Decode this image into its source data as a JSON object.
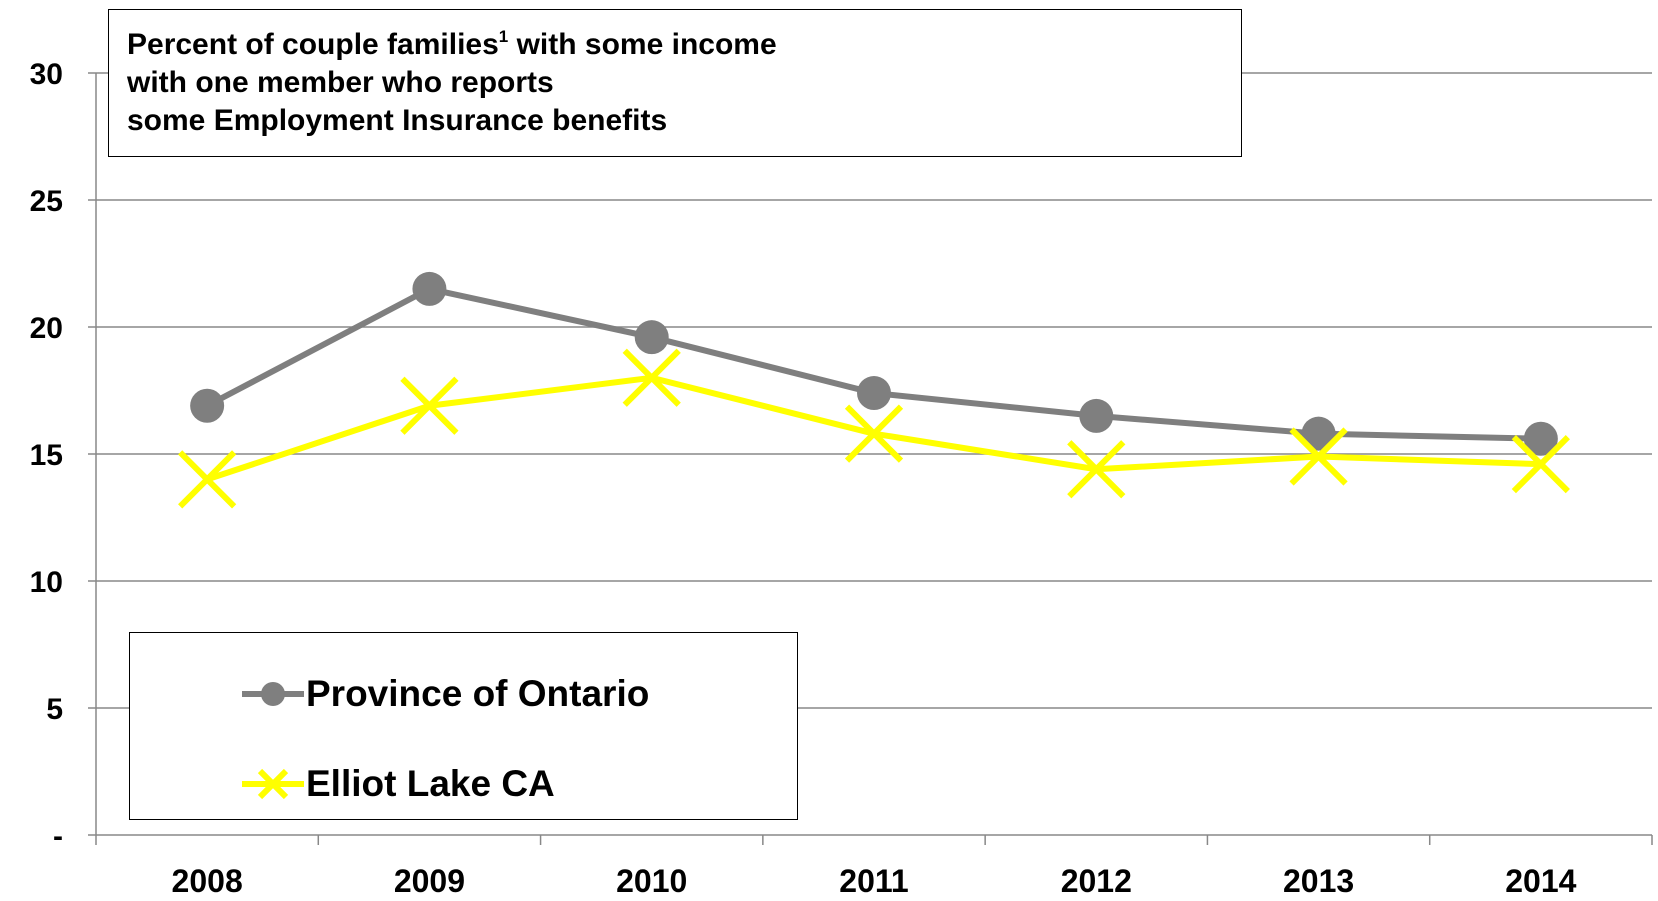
{
  "colors": {
    "ontario": "#7f7f7f",
    "elliot": "#ffff00",
    "grid": "#888888",
    "axis": "#888888"
  },
  "title_lines": {
    "line1_a": "Percent of couple families",
    "line1_sup": "1",
    "line1_b": " with some income",
    "line2": "with one member who reports",
    "line3": "some Employment Insurance benefits"
  },
  "chart_data": {
    "type": "line",
    "title": "Percent of couple families1 with some income with one member who reports some Employment Insurance benefits",
    "categories": [
      "2008",
      "2009",
      "2010",
      "2011",
      "2012",
      "2013",
      "2014"
    ],
    "ylim": [
      0,
      30
    ],
    "yticks": [
      0,
      5,
      10,
      15,
      20,
      25,
      30
    ],
    "ytick_labels": [
      "-",
      "5",
      "10",
      "15",
      "20",
      "25",
      "30"
    ],
    "grid": true,
    "legend_position": "bottom-left",
    "series": [
      {
        "name": "Province of Ontario",
        "marker": "circle",
        "color": "#7f7f7f",
        "values": [
          16.9,
          21.5,
          19.6,
          17.4,
          16.5,
          15.8,
          15.6
        ]
      },
      {
        "name": "Elliot Lake CA",
        "marker": "x",
        "color": "#ffff00",
        "values": [
          14.0,
          16.9,
          18.0,
          15.8,
          14.4,
          14.9,
          14.6
        ]
      }
    ]
  }
}
